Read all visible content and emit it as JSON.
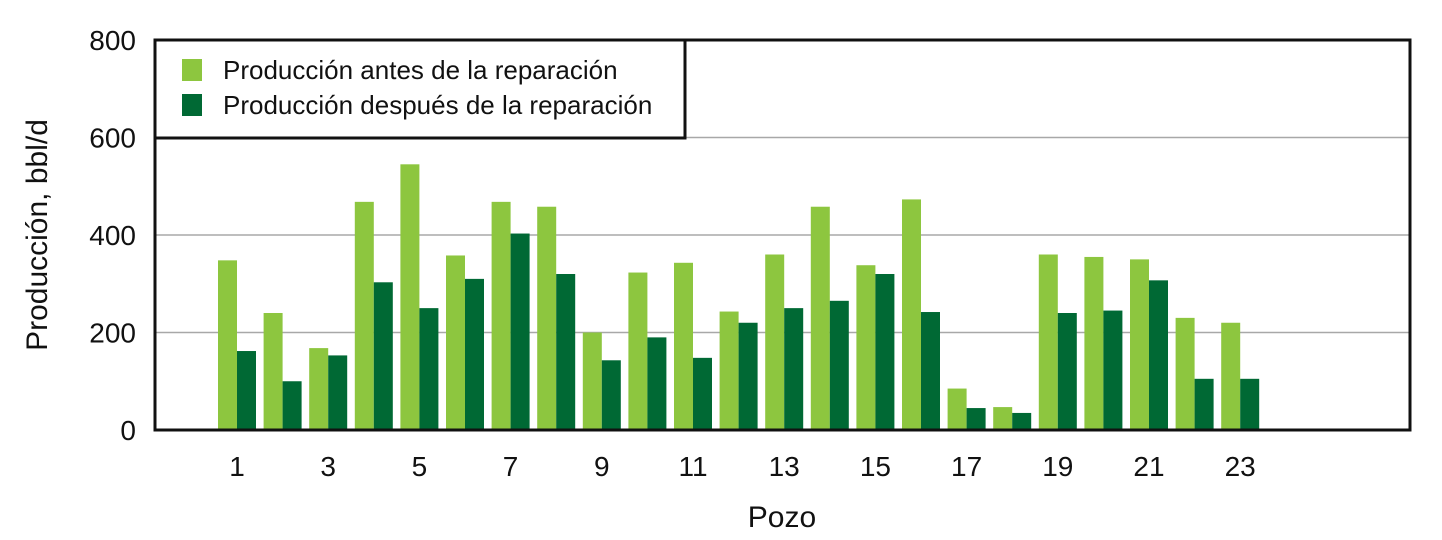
{
  "chart_data": {
    "type": "bar",
    "xlabel": "Pozo",
    "ylabel": "Producción, bbl/d",
    "ylim": [
      0,
      800
    ],
    "yticks": [
      "0",
      "200",
      "400",
      "600",
      "800"
    ],
    "xticks": [
      "1",
      "3",
      "5",
      "7",
      "9",
      "11",
      "13",
      "15",
      "17",
      "19",
      "21",
      "23"
    ],
    "categories": [
      "1",
      "2",
      "3",
      "4",
      "5",
      "6",
      "7",
      "8",
      "9",
      "10",
      "11",
      "12",
      "13",
      "14",
      "15",
      "16",
      "17",
      "18",
      "19",
      "20",
      "21",
      "22",
      "23"
    ],
    "grid": true,
    "legend_position": "top-left",
    "series": [
      {
        "name": "Producción antes de la reparación",
        "color": "#8dc63f",
        "values": [
          348,
          240,
          168,
          468,
          545,
          358,
          468,
          458,
          200,
          323,
          343,
          243,
          360,
          458,
          338,
          473,
          85,
          47,
          360,
          355,
          350,
          230,
          220
        ]
      },
      {
        "name": "Producción después de la reparación",
        "color": "#006934",
        "values": [
          162,
          100,
          153,
          303,
          250,
          310,
          403,
          320,
          143,
          190,
          148,
          220,
          250,
          265,
          320,
          242,
          45,
          35,
          240,
          245,
          307,
          105,
          105
        ]
      }
    ]
  }
}
